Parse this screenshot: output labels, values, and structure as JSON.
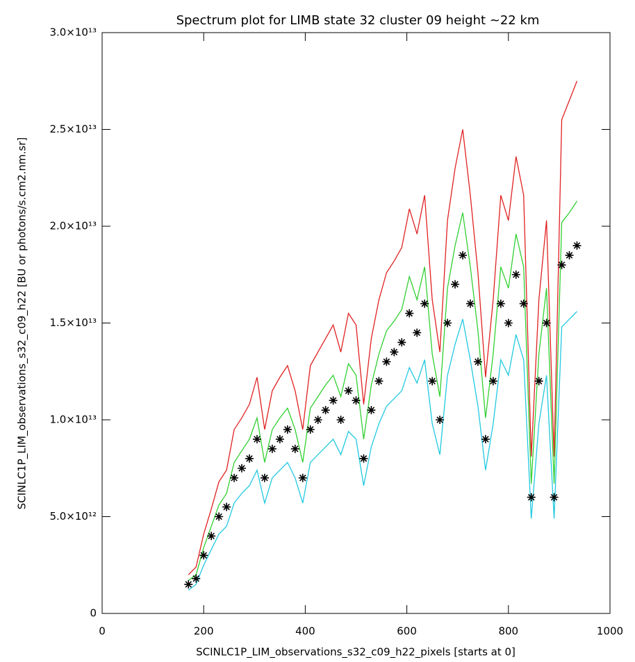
{
  "chart_data": {
    "type": "line",
    "title": "Spectrum plot for LIMB state 32 cluster 09 height ~22 km",
    "x_label": "SCINLC1P_LIM_observations_s32_c09_h22_pixels [starts at 0]",
    "y_label": "SCINLC1P_LIM_observations_s32_c09_h22 [BU or photons/s.cm2.nm.sr]",
    "xlim": [
      0,
      1000
    ],
    "ylim": [
      0,
      30000000000000.0
    ],
    "xticks": [
      0,
      200,
      400,
      600,
      800,
      1000
    ],
    "yticks": [
      0,
      {
        "value": 5000000000000.0,
        "label": "5.0×10¹²"
      },
      {
        "value": 10000000000000.0,
        "label": "1.0×10¹³"
      },
      {
        "value": 15000000000000.0,
        "label": "1.5×10¹³"
      },
      {
        "value": 20000000000000.0,
        "label": "2.0×10¹³"
      },
      {
        "value": 25000000000000.0,
        "label": "2.5×10¹³"
      },
      {
        "value": 30000000000000.0,
        "label": "3.0×10¹³"
      }
    ],
    "grid": false,
    "x": [
      170,
      185,
      200,
      215,
      230,
      245,
      260,
      275,
      290,
      305,
      320,
      335,
      350,
      365,
      380,
      395,
      410,
      425,
      440,
      455,
      470,
      485,
      500,
      515,
      530,
      545,
      560,
      575,
      590,
      605,
      620,
      635,
      650,
      665,
      680,
      695,
      710,
      725,
      740,
      755,
      770,
      785,
      800,
      815,
      830,
      845,
      860,
      875,
      890,
      905,
      920,
      935
    ],
    "series": [
      {
        "color": "#e02020",
        "marker": "none",
        "values": [
          2000000000000.0,
          2400000000000.0,
          4100000000000.0,
          5400000000000.0,
          6800000000000.0,
          7400000000000.0,
          9500000000000.0,
          10100000000000.0,
          10800000000000.0,
          12200000000000.0,
          9500000000000.0,
          11500000000000.0,
          12200000000000.0,
          12800000000000.0,
          11500000000000.0,
          9500000000000.0,
          12800000000000.0,
          13500000000000.0,
          14200000000000.0,
          14900000000000.0,
          13500000000000.0,
          15500000000000.0,
          14900000000000.0,
          10800000000000.0,
          14200000000000.0,
          16200000000000.0,
          17600000000000.0,
          18200000000000.0,
          18900000000000.0,
          20900000000000.0,
          19600000000000.0,
          21600000000000.0,
          16200000000000.0,
          13500000000000.0,
          20300000000000.0,
          23000000000000.0,
          25000000000000.0,
          21600000000000.0,
          17600000000000.0,
          12200000000000.0,
          16200000000000.0,
          21600000000000.0,
          20300000000000.0,
          23600000000000.0,
          21600000000000.0,
          8100000000000.0,
          16200000000000.0,
          20300000000000.0,
          8100000000000.0,
          25500000000000.0,
          26500000000000.0,
          27500000000000.0
        ]
      },
      {
        "color": "#30d030",
        "marker": "none",
        "values": [
          1700000000000.0,
          2000000000000.0,
          3400000000000.0,
          4500000000000.0,
          5600000000000.0,
          6200000000000.0,
          7800000000000.0,
          8400000000000.0,
          9000000000000.0,
          10100000000000.0,
          7800000000000.0,
          9500000000000.0,
          10100000000000.0,
          10600000000000.0,
          9500000000000.0,
          7800000000000.0,
          10600000000000.0,
          11200000000000.0,
          11800000000000.0,
          12300000000000.0,
          11200000000000.0,
          12900000000000.0,
          12300000000000.0,
          9000000000000.0,
          11800000000000.0,
          13400000000000.0,
          14600000000000.0,
          15100000000000.0,
          15700000000000.0,
          17400000000000.0,
          16200000000000.0,
          17900000000000.0,
          13400000000000.0,
          11200000000000.0,
          16800000000000.0,
          19000000000000.0,
          20700000000000.0,
          17900000000000.0,
          14600000000000.0,
          10100000000000.0,
          13400000000000.0,
          17900000000000.0,
          16800000000000.0,
          19600000000000.0,
          17900000000000.0,
          6700000000000.0,
          13400000000000.0,
          16800000000000.0,
          6700000000000.0,
          20200000000000.0,
          20700000000000.0,
          21300000000000.0
        ]
      },
      {
        "color": "#20c8e0",
        "marker": "none",
        "values": [
          1200000000000.0,
          1500000000000.0,
          2500000000000.0,
          3300000000000.0,
          4100000000000.0,
          4500000000000.0,
          5700000000000.0,
          6200000000000.0,
          6600000000000.0,
          7400000000000.0,
          5700000000000.0,
          7000000000000.0,
          7400000000000.0,
          7800000000000.0,
          7000000000000.0,
          5700000000000.0,
          7800000000000.0,
          8200000000000.0,
          8600000000000.0,
          9000000000000.0,
          8200000000000.0,
          9400000000000.0,
          9000000000000.0,
          6600000000000.0,
          8600000000000.0,
          9800000000000.0,
          10700000000000.0,
          11100000000000.0,
          11500000000000.0,
          12700000000000.0,
          11900000000000.0,
          13100000000000.0,
          9800000000000.0,
          8200000000000.0,
          12300000000000.0,
          13900000000000.0,
          15200000000000.0,
          13100000000000.0,
          10700000000000.0,
          7400000000000.0,
          9800000000000.0,
          13100000000000.0,
          12300000000000.0,
          14400000000000.0,
          13100000000000.0,
          4900000000000.0,
          9800000000000.0,
          12300000000000.0,
          4900000000000.0,
          14800000000000.0,
          15200000000000.0,
          15600000000000.0
        ]
      },
      {
        "color": "#000000",
        "marker": "asterisk",
        "values": [
          1500000000000.0,
          1800000000000.0,
          3000000000000.0,
          4000000000000.0,
          5000000000000.0,
          5500000000000.0,
          7000000000000.0,
          7500000000000.0,
          8000000000000.0,
          9000000000000.0,
          7000000000000.0,
          8500000000000.0,
          9000000000000.0,
          9500000000000.0,
          8500000000000.0,
          7000000000000.0,
          9500000000000.0,
          10000000000000.0,
          10500000000000.0,
          11000000000000.0,
          10000000000000.0,
          11500000000000.0,
          11000000000000.0,
          8000000000000.0,
          10500000000000.0,
          12000000000000.0,
          13000000000000.0,
          13500000000000.0,
          14000000000000.0,
          15500000000000.0,
          14500000000000.0,
          16000000000000.0,
          12000000000000.0,
          10000000000000.0,
          15000000000000.0,
          17000000000000.0,
          18500000000000.0,
          16000000000000.0,
          13000000000000.0,
          9000000000000.0,
          12000000000000.0,
          16000000000000.0,
          15000000000000.0,
          17500000000000.0,
          16000000000000.0,
          6000000000000.0,
          12000000000000.0,
          15000000000000.0,
          6000000000000.0,
          18000000000000.0,
          18500000000000.0,
          19000000000000.0
        ]
      }
    ]
  }
}
